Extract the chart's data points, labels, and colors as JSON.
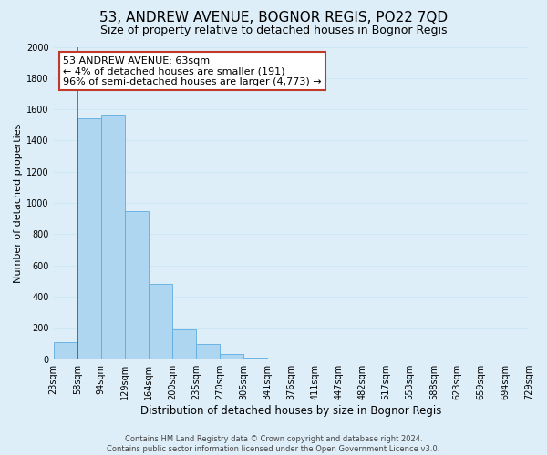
{
  "title": "53, ANDREW AVENUE, BOGNOR REGIS, PO22 7QD",
  "subtitle": "Size of property relative to detached houses in Bognor Regis",
  "xlabel": "Distribution of detached houses by size in Bognor Regis",
  "ylabel": "Number of detached properties",
  "bar_values": [
    110,
    1540,
    1565,
    950,
    480,
    190,
    95,
    35,
    10,
    0,
    0,
    0,
    0,
    0,
    0,
    0,
    0,
    0,
    0,
    0
  ],
  "bin_labels": [
    "23sqm",
    "58sqm",
    "94sqm",
    "129sqm",
    "164sqm",
    "200sqm",
    "235sqm",
    "270sqm",
    "305sqm",
    "341sqm",
    "376sqm",
    "411sqm",
    "447sqm",
    "482sqm",
    "517sqm",
    "553sqm",
    "588sqm",
    "623sqm",
    "659sqm",
    "694sqm",
    "729sqm"
  ],
  "bar_color": "#aed6f1",
  "bar_edge_color": "#5dade2",
  "vline_color": "#c0392b",
  "vline_x_idx": 1,
  "ylim": [
    0,
    2000
  ],
  "yticks": [
    0,
    200,
    400,
    600,
    800,
    1000,
    1200,
    1400,
    1600,
    1800,
    2000
  ],
  "annotation_title": "53 ANDREW AVENUE: 63sqm",
  "annotation_line1": "← 4% of detached houses are smaller (191)",
  "annotation_line2": "96% of semi-detached houses are larger (4,773) →",
  "annotation_box_color": "#ffffff",
  "annotation_box_edge": "#c0392b",
  "footer_line1": "Contains HM Land Registry data © Crown copyright and database right 2024.",
  "footer_line2": "Contains public sector information licensed under the Open Government Licence v3.0.",
  "grid_color": "#cde8f5",
  "background_color": "#deeef8",
  "title_fontsize": 11,
  "subtitle_fontsize": 9,
  "xlabel_fontsize": 8.5,
  "ylabel_fontsize": 8,
  "tick_fontsize": 7,
  "annotation_fontsize": 8,
  "footer_fontsize": 6
}
